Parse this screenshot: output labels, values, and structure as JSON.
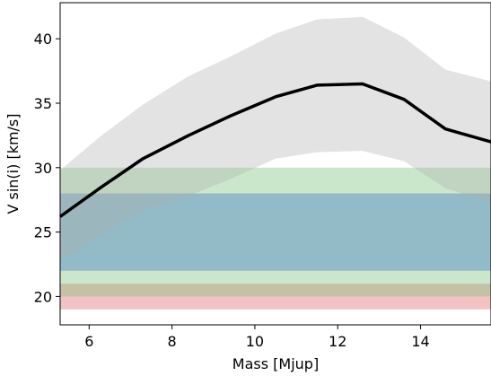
{
  "chart_data": {
    "type": "line",
    "title": "",
    "xlabel": "Mass [Mjup]",
    "ylabel": "V sin(i) [km/s]",
    "xlim": [
      5.3,
      15.7
    ],
    "ylim": [
      17.8,
      42.8
    ],
    "xticks": [
      6,
      8,
      10,
      12,
      14
    ],
    "yticks": [
      20,
      25,
      30,
      35,
      40
    ],
    "series": [
      {
        "type": "line",
        "color": "#000000",
        "x": [
          5.3,
          6.3,
          7.3,
          8.4,
          9.4,
          10.5,
          11.5,
          12.6,
          13.6,
          14.6,
          15.7
        ],
        "y": [
          26.2,
          28.5,
          30.7,
          32.5,
          34.0,
          35.5,
          36.4,
          36.5,
          35.3,
          33.0,
          32.0
        ]
      },
      {
        "type": "band",
        "color": "#b0b0b0",
        "opacity": 0.35,
        "x": [
          5.3,
          6.3,
          7.3,
          8.4,
          9.4,
          10.5,
          11.5,
          12.6,
          13.6,
          14.6,
          15.7
        ],
        "lower": [
          22.7,
          24.8,
          26.7,
          27.8,
          29.1,
          30.7,
          31.2,
          31.3,
          30.5,
          28.4,
          27.3
        ],
        "upper": [
          29.8,
          32.5,
          34.9,
          37.1,
          38.6,
          40.4,
          41.5,
          41.7,
          40.1,
          37.6,
          36.7
        ]
      }
    ],
    "hbands": [
      {
        "ymin": 19,
        "ymax": 21,
        "color": "#e06666",
        "opacity": 0.4
      },
      {
        "ymin": 20,
        "ymax": 30,
        "color": "#7cc47c",
        "opacity": 0.4
      },
      {
        "ymin": 22,
        "ymax": 28,
        "color": "#4f84c4",
        "opacity": 0.45
      }
    ],
    "grid": false,
    "legend": "none"
  }
}
